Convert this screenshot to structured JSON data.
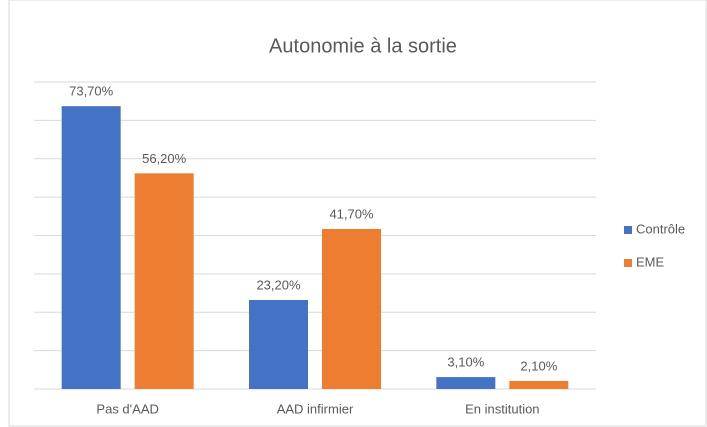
{
  "chart_data": {
    "type": "bar",
    "title": "Autonomie à la sortie",
    "categories": [
      "Pas d'AAD",
      "AAD infirmier",
      "En institution"
    ],
    "series": [
      {
        "name": "Contrôle",
        "color": "#4472c4",
        "values": [
          73.7,
          23.2,
          3.1
        ],
        "value_labels": [
          "73,70%",
          "23,20%",
          "3,10%"
        ]
      },
      {
        "name": "EME",
        "color": "#ed7d31",
        "values": [
          56.2,
          41.7,
          2.1
        ],
        "value_labels": [
          "56,20%",
          "41,70%",
          "2,10%"
        ]
      }
    ],
    "ylim": [
      0,
      80
    ],
    "yticks": [
      0,
      10,
      20,
      30,
      40,
      50,
      60,
      70,
      80
    ],
    "grid": true,
    "legend": "right"
  }
}
